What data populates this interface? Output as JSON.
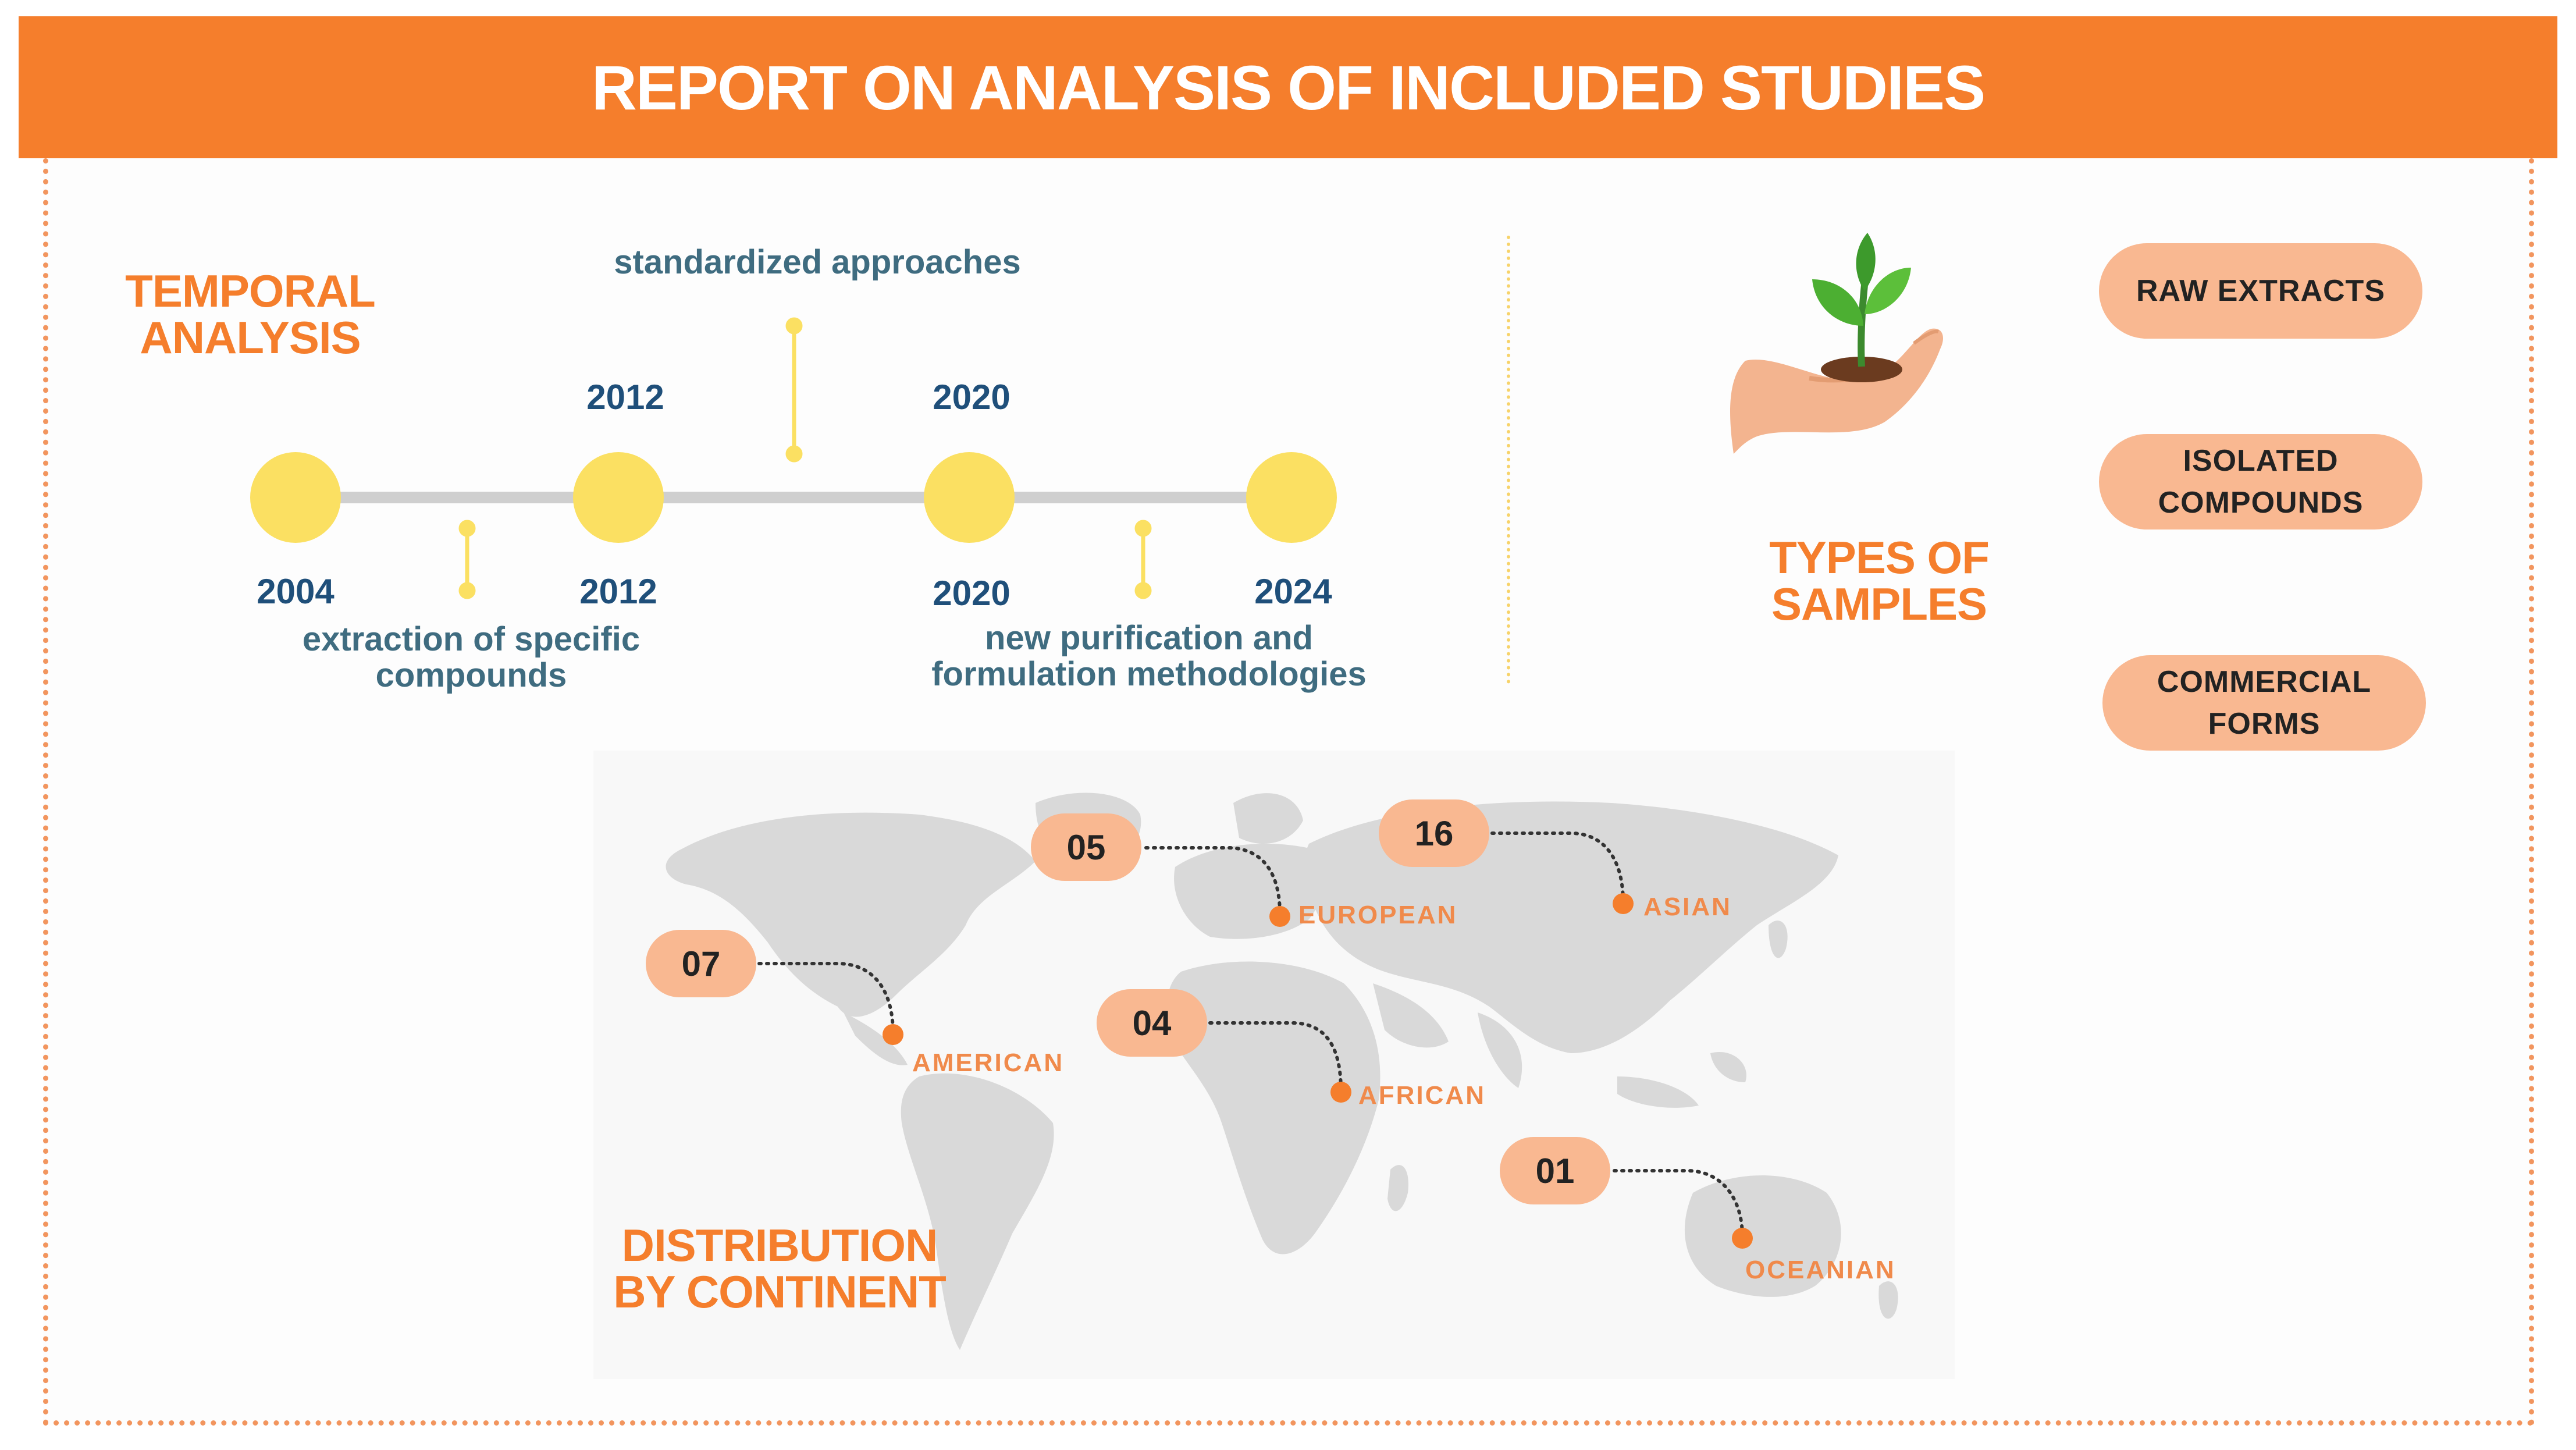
{
  "header": {
    "title": "REPORT ON ANALYSIS OF INCLUDED STUDIES"
  },
  "temporal": {
    "title": "TEMPORAL ANALYSIS",
    "top_years": [
      "2012",
      "2020"
    ],
    "bottom_years": [
      "2004",
      "2012",
      "2020",
      "2024"
    ],
    "notes": {
      "standardized": "standardized approaches",
      "extraction": "extraction of specific compounds",
      "purification": "new purification and formulation methodologies"
    }
  },
  "samples": {
    "title": "TYPES OF SAMPLES",
    "types": [
      "RAW EXTRACTS",
      "ISOLATED COMPOUNDS",
      "COMMERCIAL FORMS"
    ]
  },
  "distribution": {
    "title": "DISTRIBUTION BY CONTINENT",
    "continents": [
      {
        "name": "EUROPEAN",
        "count": "05"
      },
      {
        "name": "ASIAN",
        "count": "16"
      },
      {
        "name": "AMERICAN",
        "count": "07"
      },
      {
        "name": "AFRICAN",
        "count": "04"
      },
      {
        "name": "OCEANIAN",
        "count": "01"
      }
    ]
  },
  "colors": {
    "accent_orange": "#f57e2c",
    "timeline_dot": "#fbe062",
    "pill": "#f9b891",
    "map": "#d9d9d9",
    "year_text": "#1f4f7a"
  }
}
